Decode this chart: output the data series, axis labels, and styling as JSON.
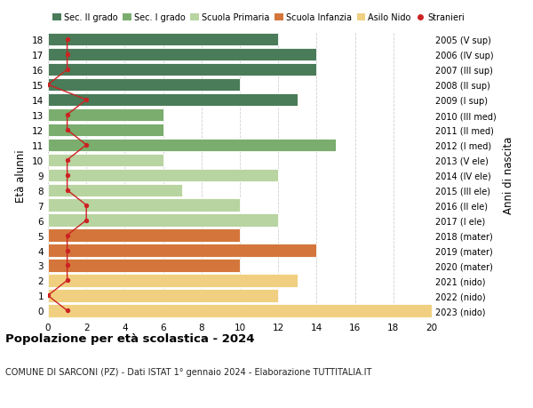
{
  "ages": [
    18,
    17,
    16,
    15,
    14,
    13,
    12,
    11,
    10,
    9,
    8,
    7,
    6,
    5,
    4,
    3,
    2,
    1,
    0
  ],
  "right_labels": [
    "2005 (V sup)",
    "2006 (IV sup)",
    "2007 (III sup)",
    "2008 (II sup)",
    "2009 (I sup)",
    "2010 (III med)",
    "2011 (II med)",
    "2012 (I med)",
    "2013 (V ele)",
    "2014 (IV ele)",
    "2015 (III ele)",
    "2016 (II ele)",
    "2017 (I ele)",
    "2018 (mater)",
    "2019 (mater)",
    "2020 (mater)",
    "2021 (nido)",
    "2022 (nido)",
    "2023 (nido)"
  ],
  "bar_values": [
    12,
    14,
    14,
    10,
    13,
    6,
    6,
    15,
    6,
    12,
    7,
    10,
    12,
    10,
    14,
    10,
    13,
    12,
    20
  ],
  "stranieri_values": [
    1,
    1,
    1,
    0,
    2,
    1,
    1,
    2,
    1,
    1,
    1,
    2,
    2,
    1,
    1,
    1,
    1,
    0,
    1
  ],
  "bar_colors": [
    "#4a7c59",
    "#4a7c59",
    "#4a7c59",
    "#4a7c59",
    "#4a7c59",
    "#7aad6e",
    "#7aad6e",
    "#7aad6e",
    "#b8d4a0",
    "#b8d4a0",
    "#b8d4a0",
    "#b8d4a0",
    "#b8d4a0",
    "#d4763b",
    "#d4763b",
    "#d4763b",
    "#f0d080",
    "#f0d080",
    "#f0d080"
  ],
  "legend_labels": [
    "Sec. II grado",
    "Sec. I grado",
    "Scuola Primaria",
    "Scuola Infanzia",
    "Asilo Nido",
    "Stranieri"
  ],
  "legend_colors": [
    "#4a7c59",
    "#7aad6e",
    "#b8d4a0",
    "#d4763b",
    "#f0d080",
    "#cc2222"
  ],
  "stranieri_color": "#cc2222",
  "title": "Popolazione per età scolastica - 2024",
  "subtitle": "COMUNE DI SARCONI (PZ) - Dati ISTAT 1° gennaio 2024 - Elaborazione TUTTITALIA.IT",
  "ylabel": "Età alunni",
  "ylabel_right": "Anni di nascita",
  "xlim": [
    0,
    20
  ],
  "xticks": [
    0,
    2,
    4,
    6,
    8,
    10,
    12,
    14,
    16,
    18,
    20
  ],
  "background_color": "#ffffff",
  "grid_color": "#d0d0d0"
}
